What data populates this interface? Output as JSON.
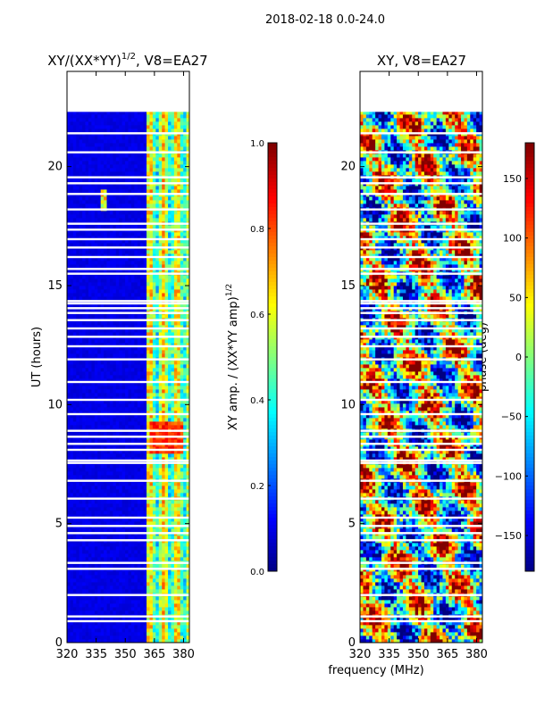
{
  "suptitle": "2018-02-18 0.0-24.0",
  "colors": {
    "background": "#ffffff",
    "axis": "#000000",
    "blank": "#ffffff"
  },
  "chart_data": [
    {
      "type": "heatmap",
      "title": "XY/(XX*YY)^1/2, V8=EA27",
      "title_main": "XY/(XX*YY)",
      "title_exp": "1/2",
      "title_tail": ", V8=EA27",
      "xlabel": "",
      "ylabel": "UT (hours)",
      "xlim": [
        320,
        383
      ],
      "ylim": [
        0,
        24
      ],
      "xticks": [
        320,
        335,
        350,
        365,
        380
      ],
      "yticks": [
        0,
        5,
        10,
        15,
        20
      ],
      "data_end_hour": 22.3,
      "colorbar": {
        "label_main": "XY amp. / (XX*YY amp)",
        "label_exp": "1/2",
        "range": [
          0.0,
          1.0
        ],
        "ticks": [
          "0.0",
          "0.2",
          "0.4",
          "0.6",
          "0.8",
          "1.0"
        ]
      }
    },
    {
      "type": "heatmap",
      "title": "XY, V8=EA27",
      "xlabel": "frequency (MHz)",
      "ylabel": "",
      "xlim": [
        320,
        383
      ],
      "ylim": [
        0,
        24
      ],
      "xticks": [
        320,
        335,
        350,
        365,
        380
      ],
      "yticks": [
        0,
        5,
        10,
        15,
        20
      ],
      "data_end_hour": 22.3,
      "colorbar": {
        "label": "phase (deg)",
        "range": [
          -180,
          180
        ],
        "ticks": [
          "150",
          "100",
          "50",
          "0",
          "−50",
          "−100",
          "−150"
        ]
      }
    }
  ]
}
